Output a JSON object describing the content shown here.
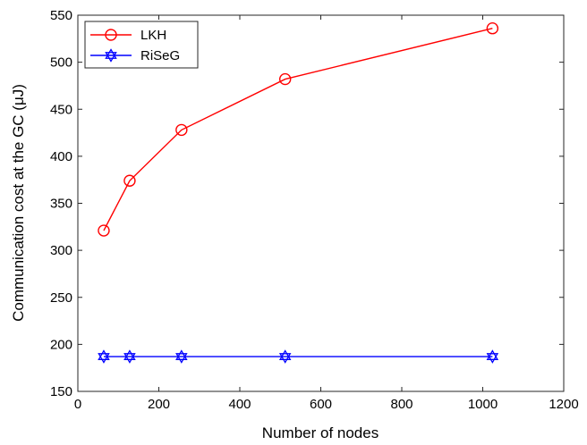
{
  "chart_data": {
    "type": "line",
    "title": "",
    "xlabel": "Number of nodes",
    "ylabel": "Communication cost at the GC (μJ)",
    "xlim": [
      0,
      1200
    ],
    "ylim": [
      150,
      550
    ],
    "xticks": [
      0,
      200,
      400,
      600,
      800,
      1000,
      1200
    ],
    "yticks": [
      150,
      200,
      250,
      300,
      350,
      400,
      450,
      500,
      550
    ],
    "grid": false,
    "legend_position": "top-left",
    "series": [
      {
        "name": "LKH",
        "color": "#ff0000",
        "marker": "circle",
        "x": [
          64,
          128,
          256,
          512,
          1024
        ],
        "y": [
          321,
          374,
          428,
          482,
          536
        ]
      },
      {
        "name": "RiSeG",
        "color": "#0000ff",
        "marker": "hexagram",
        "x": [
          64,
          128,
          256,
          512,
          1024
        ],
        "y": [
          187,
          187,
          187,
          187,
          187
        ]
      }
    ]
  }
}
